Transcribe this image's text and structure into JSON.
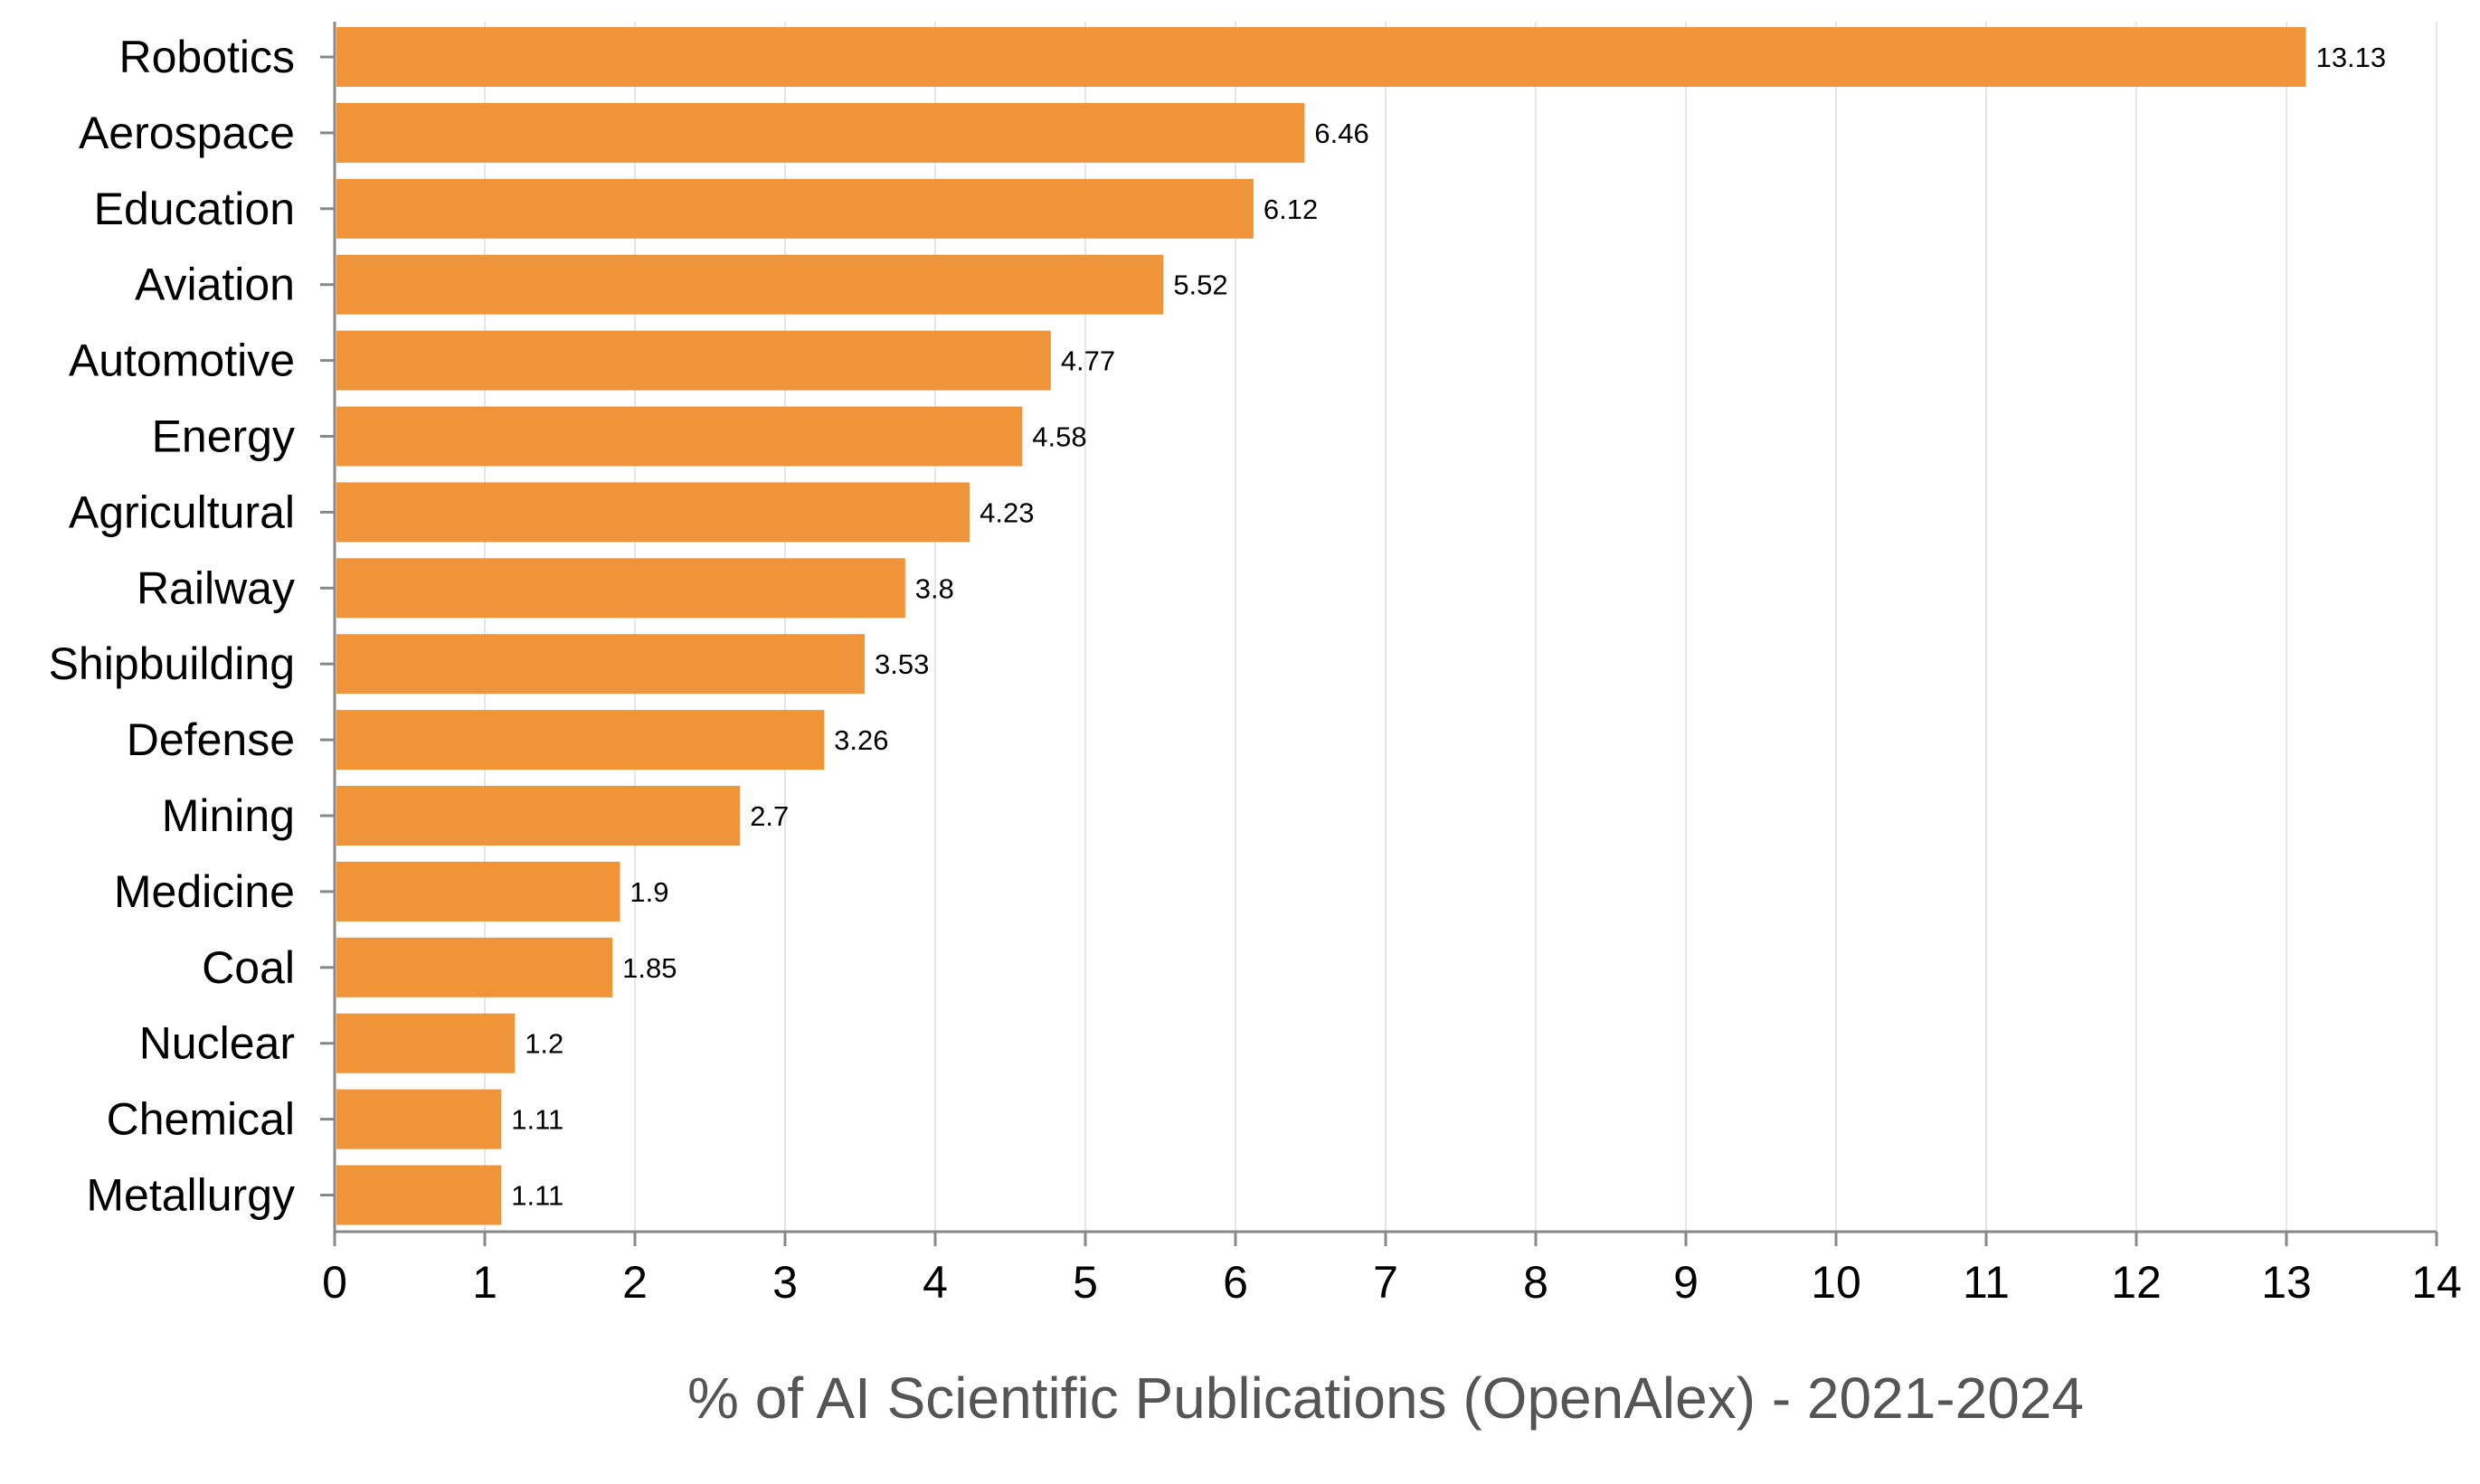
{
  "chart_data": {
    "type": "bar",
    "orientation": "horizontal",
    "title": "",
    "xlabel": "% of AI Scientific Publications (OpenAlex) - 2021-2024",
    "ylabel": "",
    "xlim": [
      0,
      14
    ],
    "x_ticks": [
      "0",
      "1",
      "2",
      "3",
      "4",
      "5",
      "6",
      "7",
      "8",
      "9",
      "10",
      "11",
      "12",
      "13",
      "14"
    ],
    "grid": "vertical",
    "bar_color": "#f0943a",
    "categories": [
      "Robotics",
      "Aerospace",
      "Education",
      "Aviation",
      "Automotive",
      "Energy",
      "Agricultural",
      "Railway",
      "Shipbuilding",
      "Defense",
      "Mining",
      "Medicine",
      "Coal",
      "Nuclear",
      "Chemical",
      "Metallurgy"
    ],
    "values": [
      13.13,
      6.46,
      6.12,
      5.52,
      4.77,
      4.58,
      4.23,
      3.8,
      3.53,
      3.26,
      2.7,
      1.9,
      1.85,
      1.2,
      1.11,
      1.11
    ],
    "value_labels": [
      "13.13",
      "6.46",
      "6.12",
      "5.52",
      "4.77",
      "4.58",
      "4.23",
      "3.8",
      "3.53",
      "3.26",
      "2.7",
      "1.9",
      "1.85",
      "1.2",
      "1.11",
      "1.11"
    ]
  }
}
